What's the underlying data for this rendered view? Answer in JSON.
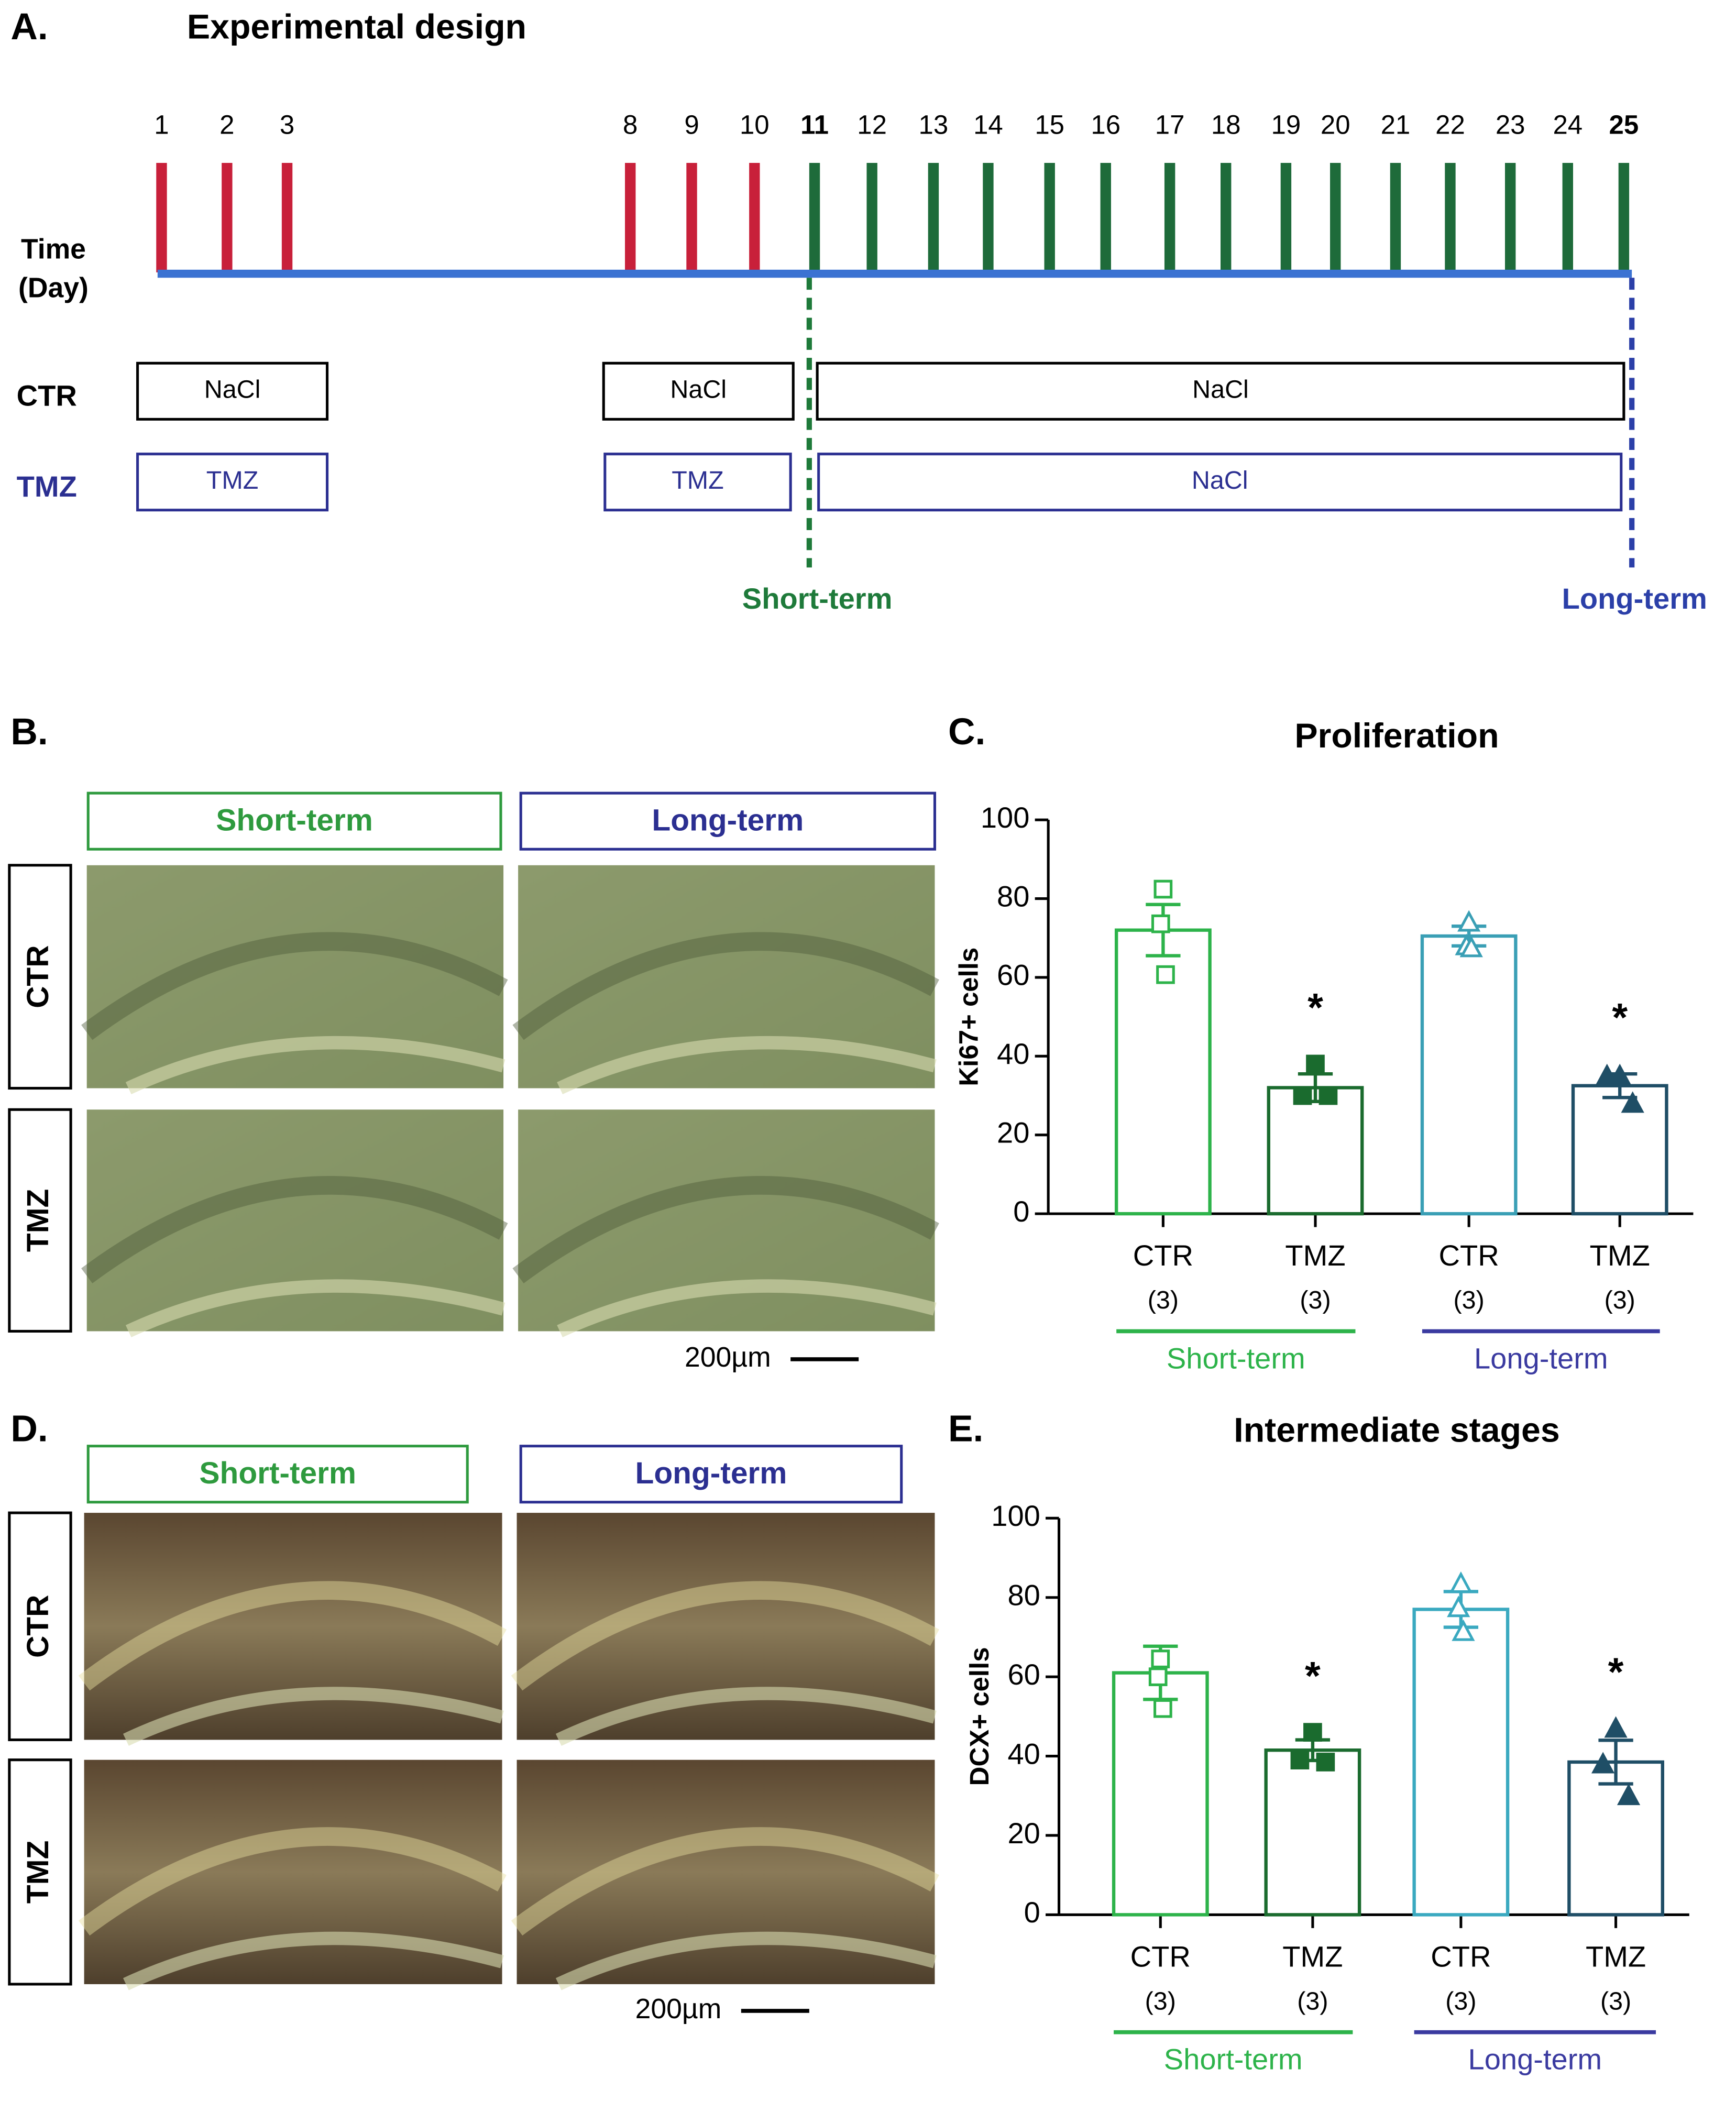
{
  "panel_labels": [
    "A.",
    "B.",
    "C.",
    "D.",
    "E."
  ],
  "design": {
    "title": "Experimental design",
    "time_label": [
      "Time",
      "(Day)"
    ],
    "days": [
      {
        "label": "1",
        "color": "#c8203a"
      },
      {
        "label": "2",
        "color": "#c8203a"
      },
      {
        "label": "3",
        "color": "#c8203a"
      },
      {
        "label": "8",
        "color": "#c8203a"
      },
      {
        "label": "9",
        "color": "#c8203a"
      },
      {
        "label": "10",
        "color": "#c8203a"
      },
      {
        "label": "11",
        "color": "#1e6b3a",
        "bold": true
      },
      {
        "label": "12",
        "color": "#1e6b3a"
      },
      {
        "label": "13",
        "color": "#1e6b3a"
      },
      {
        "label": "14",
        "color": "#1e6b3a"
      },
      {
        "label": "15",
        "color": "#1e6b3a"
      },
      {
        "label": "16",
        "color": "#1e6b3a"
      },
      {
        "label": "17",
        "color": "#1e6b3a"
      },
      {
        "label": "18",
        "color": "#1e6b3a"
      },
      {
        "label": "19",
        "color": "#1e6b3a"
      },
      {
        "label": "20",
        "color": "#1e6b3a"
      },
      {
        "label": "21",
        "color": "#1e6b3a"
      },
      {
        "label": "22",
        "color": "#1e6b3a"
      },
      {
        "label": "23",
        "color": "#1e6b3a"
      },
      {
        "label": "24",
        "color": "#1e6b3a"
      },
      {
        "label": "25",
        "color": "#1e6b3a",
        "bold": true
      }
    ],
    "rows": [
      {
        "label": "CTR",
        "color": "#000000",
        "boxes": [
          "NaCl",
          "NaCl",
          "NaCl"
        ]
      },
      {
        "label": "TMZ",
        "color": "#2b2f91",
        "boxes": [
          "TMZ",
          "TMZ",
          "NaCl"
        ]
      }
    ],
    "timepoints": [
      {
        "label": "Short-term",
        "color": "#1e7a3a"
      },
      {
        "label": "Long-term",
        "color": "#2b3fa8"
      }
    ]
  },
  "histology": [
    {
      "columns": [
        {
          "label": "Short-term",
          "color": "#2e9a3e"
        },
        {
          "label": "Long-term",
          "color": "#2b2f91"
        }
      ],
      "rows": [
        "CTR",
        "TMZ"
      ],
      "scale_bar": "200µm"
    },
    {
      "columns": [
        {
          "label": "Short-term",
          "color": "#2e9a3e"
        },
        {
          "label": "Long-term",
          "color": "#2b2f91"
        }
      ],
      "rows": [
        "CTR",
        "TMZ"
      ],
      "scale_bar": "200µm"
    }
  ],
  "chart_data": [
    {
      "type": "bar",
      "title": "Proliferation",
      "y_label": "Ki67+ cells",
      "categories": [
        "CTR",
        "TMZ",
        "CTR",
        "TMZ"
      ],
      "n_labels": [
        "(3)",
        "(3)",
        "(3)",
        "(3)"
      ],
      "values": [
        72,
        32,
        70.5,
        32.5
      ],
      "errors": [
        6.5,
        3.5,
        2.5,
        3
      ],
      "points": [
        [
          82.4,
          73.6,
          60.7
        ],
        [
          38,
          30,
          30
        ],
        [
          74,
          68,
          67.5
        ],
        [
          35,
          35,
          28
        ]
      ],
      "colors": [
        "#2db34a",
        "#1a6b2e",
        "#3a9fb5",
        "#1f4e66"
      ],
      "markers": [
        "square",
        "square",
        "triangle",
        "triangle"
      ],
      "marker_filled": [
        false,
        true,
        false,
        true
      ],
      "significance": [
        null,
        "*",
        null,
        "*"
      ],
      "groups": [
        {
          "label": "Short-term",
          "color": "#2db34a",
          "span": [
            0,
            1
          ]
        },
        {
          "label": "Long-term",
          "color": "#3a3aa0",
          "span": [
            2,
            3
          ]
        }
      ],
      "ylim": [
        0,
        100
      ],
      "yticks": [
        0,
        20,
        40,
        60,
        80,
        100
      ]
    },
    {
      "type": "bar",
      "title": "Intermediate stages",
      "y_label": "DCX+ cells",
      "categories": [
        "CTR",
        "TMZ",
        "CTR",
        "TMZ"
      ],
      "n_labels": [
        "(3)",
        "(3)",
        "(3)",
        "(3)"
      ],
      "values": [
        61,
        41.5,
        77,
        38.5
      ],
      "errors": [
        6.7,
        2.6,
        4.5,
        5.5
      ],
      "points": [
        [
          64.5,
          60,
          52
        ],
        [
          46,
          39,
          38.5
        ],
        [
          83.5,
          77.4,
          71.4
        ],
        [
          47,
          38,
          30
        ]
      ],
      "colors": [
        "#2db34a",
        "#1a6b2e",
        "#3aa9c0",
        "#1f4e66"
      ],
      "markers": [
        "square",
        "square",
        "triangle",
        "triangle"
      ],
      "marker_filled": [
        false,
        true,
        false,
        true
      ],
      "significance": [
        null,
        "*",
        null,
        "*"
      ],
      "groups": [
        {
          "label": "Short-term",
          "color": "#2db34a",
          "span": [
            0,
            1
          ]
        },
        {
          "label": "Long-term",
          "color": "#3a3aa0",
          "span": [
            2,
            3
          ]
        }
      ],
      "ylim": [
        0,
        100
      ],
      "yticks": [
        0,
        20,
        40,
        60,
        80,
        100
      ]
    }
  ]
}
